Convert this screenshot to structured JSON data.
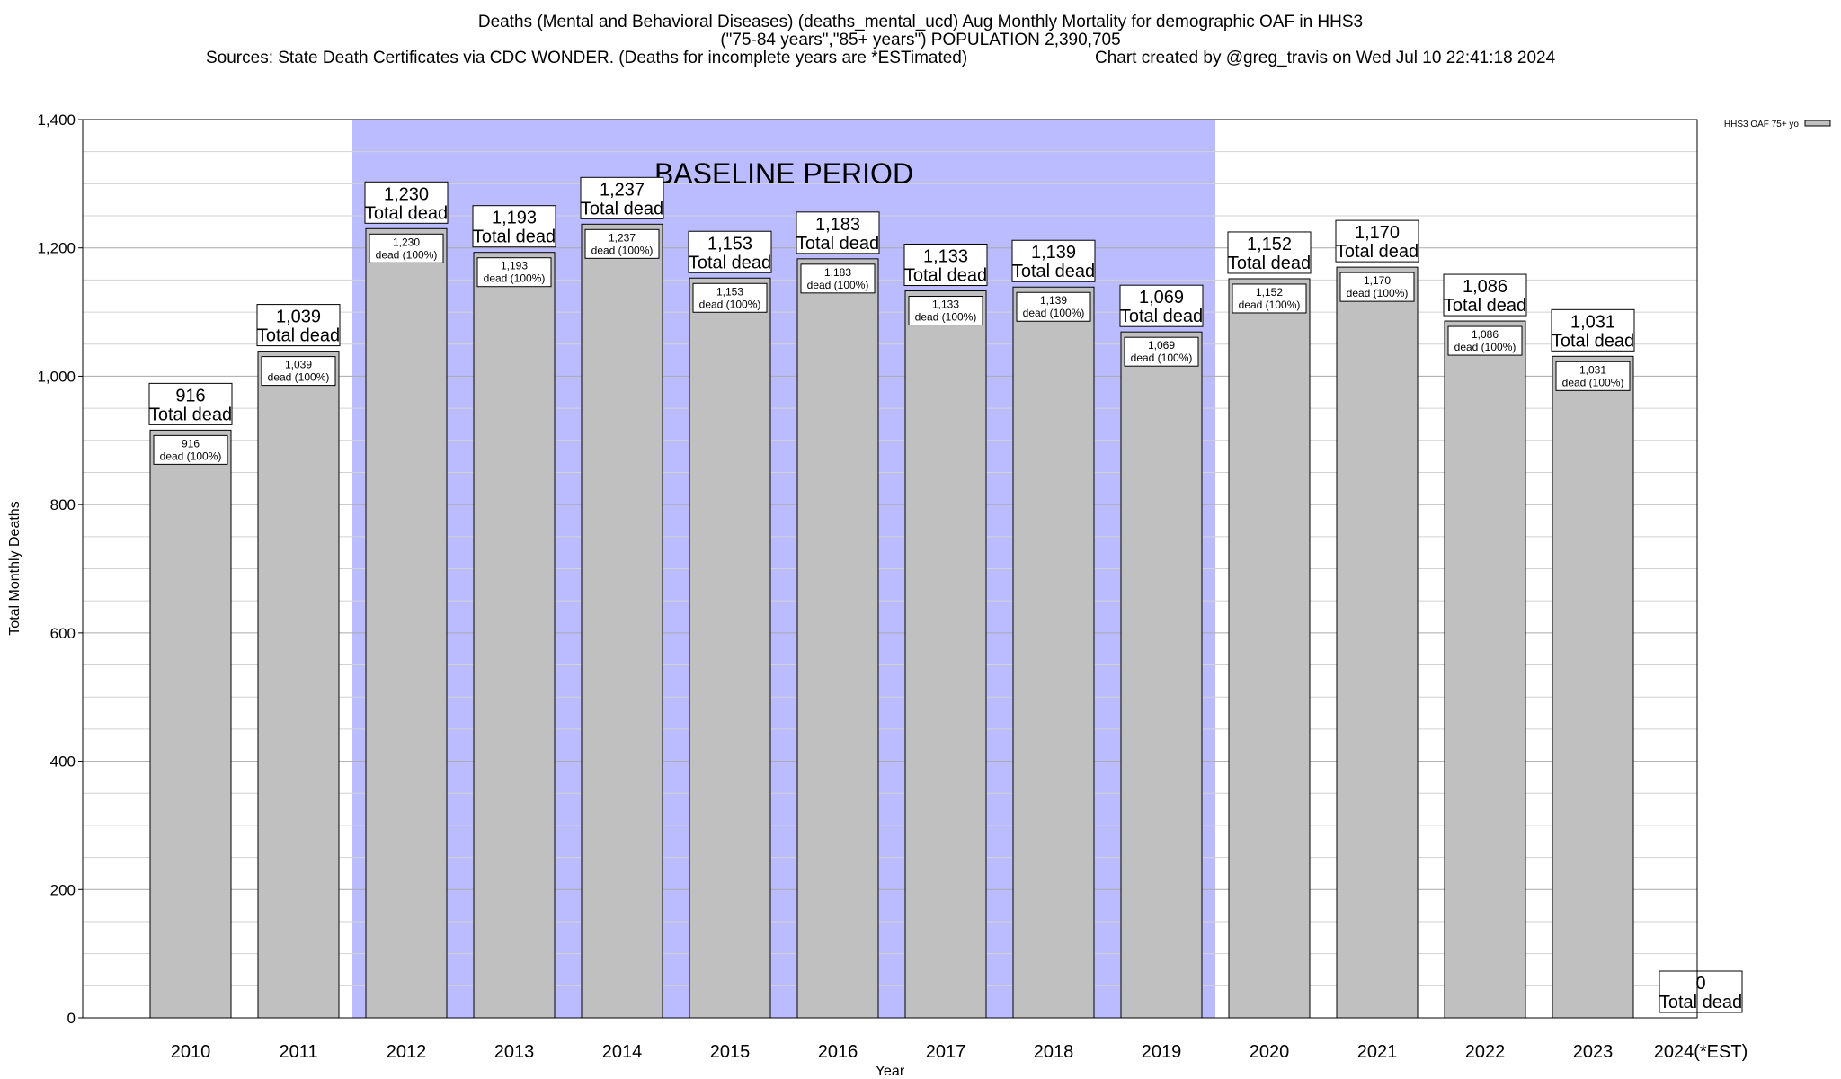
{
  "chart_data": {
    "type": "bar",
    "title_lines": [
      "Deaths (Mental and Behavioral Diseases) (deaths_mental_ucd) Aug Monthly Mortality for demographic OAF in HHS3",
      "(\"75-84 years\",\"85+ years\") POPULATION 2,390,705"
    ],
    "sources": "Sources: State Death Certificates via CDC WONDER. (Deaths for incomplete years are *ESTimated)",
    "credit": "Chart created by @greg_travis on Wed Jul 10 22:41:18 2024",
    "xlabel": "Year",
    "ylabel": "Total Monthly Deaths",
    "ylim": [
      0,
      1400
    ],
    "yticks": [
      0,
      200,
      400,
      600,
      800,
      1000,
      1200,
      1400
    ],
    "ytick_labels": [
      "0",
      "200",
      "400",
      "600",
      "800",
      "1,000",
      "1,200",
      "1,400"
    ],
    "categories": [
      "2010",
      "2011",
      "2012",
      "2013",
      "2014",
      "2015",
      "2016",
      "2017",
      "2018",
      "2019",
      "2020",
      "2021",
      "2022",
      "2023",
      "2024(*EST)"
    ],
    "series": [
      {
        "name": "HHS3 OAF 75+ yo",
        "values": [
          916,
          1039,
          1230,
          1193,
          1237,
          1153,
          1183,
          1133,
          1139,
          1069,
          1152,
          1170,
          1086,
          1031,
          0
        ],
        "color": "#c0c0c0"
      }
    ],
    "total_labels": [
      "916",
      "1,039",
      "1,230",
      "1,193",
      "1,237",
      "1,153",
      "1,183",
      "1,133",
      "1,139",
      "1,069",
      "1,152",
      "1,170",
      "1,086",
      "1,031",
      "0"
    ],
    "total_suffix": "Total dead",
    "inner_labels": [
      "916",
      "1,039",
      "1,230",
      "1,193",
      "1,237",
      "1,153",
      "1,183",
      "1,133",
      "1,139",
      "1,069",
      "1,152",
      "1,170",
      "1,086",
      "1,031"
    ],
    "inner_suffix": "dead (100%)",
    "baseline": {
      "label": "BASELINE PERIOD",
      "start_category": "2012",
      "end_category": "2019",
      "color": "#bbbbff"
    },
    "legend_position": "top-right",
    "grid": true
  }
}
